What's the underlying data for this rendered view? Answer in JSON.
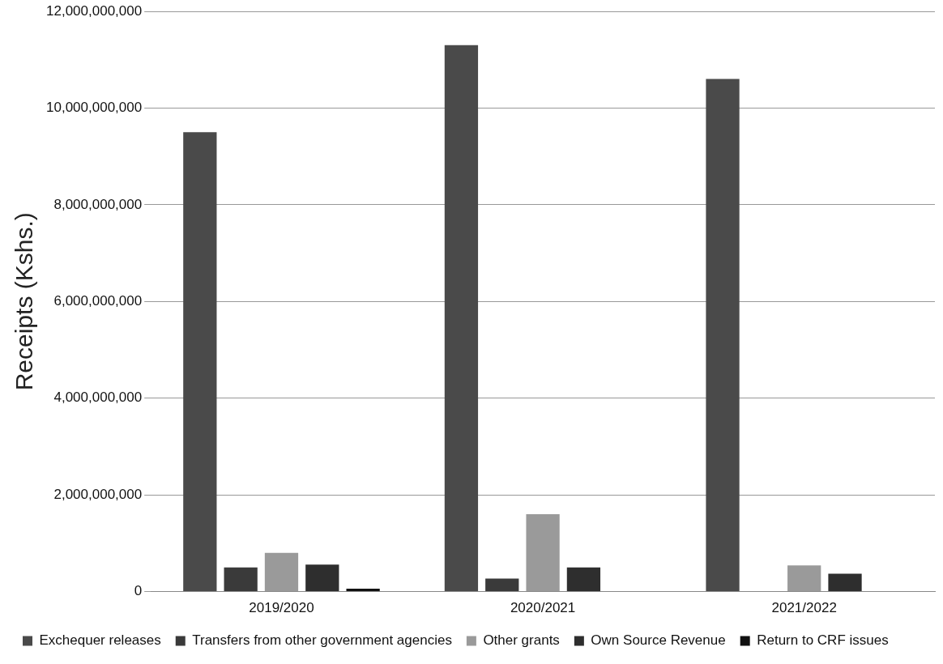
{
  "chart_data": {
    "type": "bar",
    "ylabel": "Receipts (Kshs.)",
    "categories": [
      "2019/2020",
      "2020/2021",
      "2021/2022"
    ],
    "series": [
      {
        "name": "Exchequer releases",
        "color": "#4a4a4a",
        "values": [
          9500000000,
          11300000000,
          10600000000
        ]
      },
      {
        "name": "Transfers from other government agencies",
        "color": "#3a3a3a",
        "values": [
          500000000,
          270000000,
          0
        ]
      },
      {
        "name": "Other grants",
        "color": "#9a9a9a",
        "values": [
          800000000,
          1600000000,
          540000000
        ]
      },
      {
        "name": "Own Source Revenue",
        "color": "#2e2e2e",
        "values": [
          560000000,
          500000000,
          370000000
        ]
      },
      {
        "name": "Return to CRF issues",
        "color": "#111111",
        "values": [
          60000000,
          0,
          0
        ]
      }
    ],
    "ylim": [
      0,
      12000000000
    ],
    "yticks": [
      {
        "value": 0,
        "label": "0"
      },
      {
        "value": 2000000000,
        "label": "2,000,000,000"
      },
      {
        "value": 4000000000,
        "label": "4,000,000,000"
      },
      {
        "value": 6000000000,
        "label": "6,000,000,000"
      },
      {
        "value": 8000000000,
        "label": "8,000,000,000"
      },
      {
        "value": 10000000000,
        "label": "10,000,000,000"
      },
      {
        "value": 12000000000,
        "label": "12,000,000,000"
      }
    ],
    "grid": "y",
    "legend": "bottom"
  }
}
